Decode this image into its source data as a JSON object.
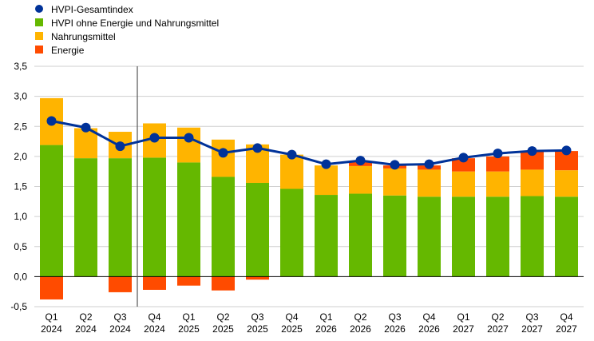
{
  "chart_data": {
    "type": "bar",
    "stacked": true,
    "title": "",
    "xlabel": "",
    "ylabel": "",
    "ylim": [
      -0.5,
      3.5
    ],
    "yticks": [
      -0.5,
      0.0,
      0.5,
      1.0,
      1.5,
      2.0,
      2.5,
      3.0,
      3.5
    ],
    "ytick_labels": [
      "-0,5",
      "0,0",
      "0,5",
      "1,0",
      "1,5",
      "2,0",
      "2,5",
      "3,0",
      "3,5"
    ],
    "grid": "horizontal",
    "legend_position": "top-left",
    "categories": [
      [
        "Q1",
        "2024"
      ],
      [
        "Q2",
        "2024"
      ],
      [
        "Q3",
        "2024"
      ],
      [
        "Q4",
        "2024"
      ],
      [
        "Q1",
        "2025"
      ],
      [
        "Q2",
        "2025"
      ],
      [
        "Q3",
        "2025"
      ],
      [
        "Q4",
        "2025"
      ],
      [
        "Q1",
        "2026"
      ],
      [
        "Q2",
        "2026"
      ],
      [
        "Q3",
        "2026"
      ],
      [
        "Q4",
        "2026"
      ],
      [
        "Q1",
        "2027"
      ],
      [
        "Q2",
        "2027"
      ],
      [
        "Q3",
        "2027"
      ],
      [
        "Q4",
        "2027"
      ]
    ],
    "projection_divider_after_index": 2,
    "series": [
      {
        "name": "HVPI-Gesamtindex",
        "kind": "line",
        "color": "#003299",
        "values": [
          2.59,
          2.48,
          2.17,
          2.31,
          2.31,
          2.06,
          2.14,
          2.03,
          1.87,
          1.93,
          1.86,
          1.87,
          1.98,
          2.05,
          2.09,
          2.1
        ]
      },
      {
        "name": "HVPI ohne Energie und Nahrungsmittel",
        "kind": "bar",
        "color": "#65B800",
        "values": [
          2.19,
          1.97,
          1.97,
          1.98,
          1.9,
          1.66,
          1.56,
          1.46,
          1.36,
          1.38,
          1.35,
          1.33,
          1.33,
          1.33,
          1.34,
          1.33
        ]
      },
      {
        "name": "Nahrungsmittel",
        "kind": "bar",
        "color": "#FFB400",
        "values": [
          0.78,
          0.5,
          0.44,
          0.57,
          0.58,
          0.62,
          0.64,
          0.57,
          0.49,
          0.46,
          0.45,
          0.45,
          0.42,
          0.42,
          0.44,
          0.44
        ]
      },
      {
        "name": "Energie",
        "kind": "bar",
        "color": "#FF4B00",
        "values": [
          -0.38,
          0.0,
          -0.26,
          -0.22,
          -0.15,
          -0.23,
          -0.05,
          0.0,
          0.0,
          0.07,
          0.05,
          0.07,
          0.22,
          0.25,
          0.3,
          0.32
        ]
      }
    ]
  }
}
